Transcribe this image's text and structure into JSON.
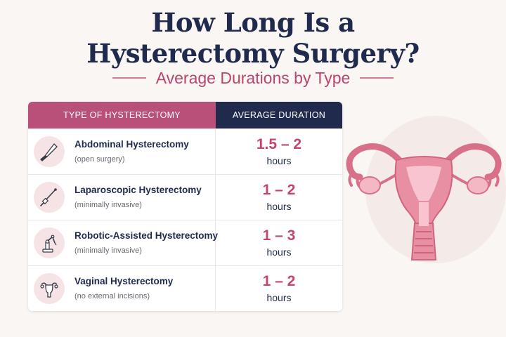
{
  "title": {
    "line1": "How Long Is a",
    "line2": "Hysterectomy Surgery?"
  },
  "subtitle": "Average Durations by Type",
  "table": {
    "headers": {
      "type": "TYPE OF HYSTERECTOMY",
      "duration": "AVERAGE DURATION"
    },
    "rows": [
      {
        "icon": "scalpel-icon",
        "name": "Abdominal Hysterectomy",
        "note": "(open surgery)",
        "duration": "1.5 – 2",
        "unit": "hours"
      },
      {
        "icon": "laparoscope-icon",
        "name": "Laparoscopic Hysterectomy",
        "note": "(minimally invasive)",
        "duration": "1 – 2",
        "unit": "hours"
      },
      {
        "icon": "robotic-arm-icon",
        "name": "Robotic-Assisted Hysterectomy",
        "note": "(minimally invasive)",
        "duration": "1 – 3",
        "unit": "hours"
      },
      {
        "icon": "uterus-icon",
        "name": "Vaginal Hysterectomy",
        "note": "(no external incisions)",
        "duration": "1 – 2",
        "unit": "hours"
      }
    ]
  },
  "colors": {
    "navy": "#1f2a4d",
    "accent_pink": "#b8507a",
    "duration_pink": "#c2456e",
    "background": "#faf6f3"
  },
  "illustration": "uterus-illustration"
}
